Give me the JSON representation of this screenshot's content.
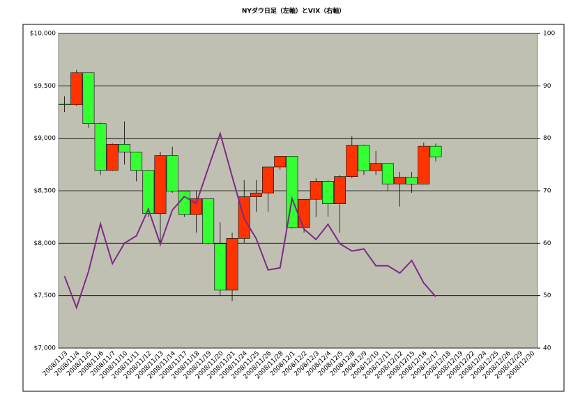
{
  "chart_data": {
    "type": "candlestick",
    "title": "NYダウ日足（左軸）とVIX（右軸）",
    "categories": [
      "2008/11/3",
      "2008/11/4",
      "2008/11/5",
      "2008/11/6",
      "2008/11/7",
      "2008/11/10",
      "2008/11/11",
      "2008/11/12",
      "2008/11/13",
      "2008/11/14",
      "2008/11/17",
      "2008/11/18",
      "2008/11/19",
      "2008/11/20",
      "2008/11/21",
      "2008/11/24",
      "2008/11/25",
      "2008/11/26",
      "2008/11/28",
      "2008/12/1",
      "2008/12/2",
      "2008/12/3",
      "2008/12/4",
      "2008/12/5",
      "2008/12/8",
      "2008/12/9",
      "2008/12/10",
      "2008/12/11",
      "2008/12/12",
      "2008/12/15",
      "2008/12/16",
      "2008/12/17",
      "2008/12/18",
      "2008/12/19",
      "2008/12/22",
      "2008/12/24",
      "2008/12/25",
      "2008/12/26",
      "2008/12/29",
      "2008/12/30"
    ],
    "open": [
      9325,
      9319,
      9625,
      9139,
      8695,
      8943,
      8870,
      8694,
      8283,
      8835,
      8497,
      8273,
      8424,
      7997,
      7552,
      8046,
      8443,
      8479,
      8726,
      8829,
      8149,
      8419,
      8591,
      8376,
      8635,
      8934,
      8691,
      8761,
      8565,
      8629,
      8564,
      8924,
      null,
      null,
      null,
      null,
      null,
      null,
      null,
      null
    ],
    "high": [
      9400,
      9653,
      9625,
      9150,
      8950,
      9160,
      8870,
      8700,
      8870,
      8920,
      8500,
      8500,
      8420,
      8200,
      8100,
      8600,
      8600,
      8730,
      8830,
      8830,
      8420,
      8620,
      8600,
      8650,
      9020,
      8940,
      8880,
      8760,
      8680,
      8680,
      8960,
      8950,
      null,
      null,
      null,
      null,
      null,
      null,
      null,
      null
    ],
    "low": [
      9250,
      9310,
      9100,
      8650,
      8690,
      8750,
      8590,
      8250,
      7970,
      8480,
      8250,
      8100,
      7990,
      7500,
      7450,
      8000,
      8300,
      8300,
      8700,
      8140,
      8100,
      8250,
      8250,
      8100,
      8620,
      8650,
      8650,
      8500,
      8350,
      8480,
      8560,
      8780,
      null,
      null,
      null,
      null,
      null,
      null,
      null,
      null
    ],
    "close": [
      9319,
      9625,
      9139,
      8695,
      8943,
      8870,
      8694,
      8283,
      8835,
      8497,
      8273,
      8424,
      7997,
      7552,
      8046,
      8443,
      8479,
      8726,
      8829,
      8149,
      8419,
      8591,
      8376,
      8635,
      8934,
      8691,
      8761,
      8565,
      8629,
      8564,
      8924,
      8824,
      null,
      null,
      null,
      null,
      null,
      null,
      null,
      null
    ],
    "up_color": "#ff3300",
    "down_color": "#33ff33",
    "line": {
      "color": "#7b2b86",
      "axis": "y2",
      "values": [
        53.7,
        47.7,
        54.6,
        63.7,
        56.1,
        60.0,
        61.4,
        66.5,
        59.8,
        66.3,
        68.9,
        67.6,
        74.3,
        80.9,
        72.7,
        64.7,
        60.9,
        54.9,
        55.3,
        68.5,
        62.7,
        60.7,
        63.6,
        59.9,
        58.5,
        58.9,
        55.7,
        55.7,
        54.3,
        56.7,
        52.4,
        49.8,
        null,
        null,
        null,
        null,
        null,
        null,
        null,
        null
      ]
    },
    "ylim": [
      7000,
      10000
    ],
    "yticks": [
      {
        "value": 7000,
        "label": "$7,000"
      },
      {
        "value": 7500,
        "label": "$7,500"
      },
      {
        "value": 8000,
        "label": "$8,000"
      },
      {
        "value": 8500,
        "label": "$8,500"
      },
      {
        "value": 9000,
        "label": "$9,000"
      },
      {
        "value": 9500,
        "label": "$9,500"
      },
      {
        "value": 10000,
        "label": "$10,000"
      }
    ],
    "y2lim": [
      40,
      100
    ],
    "y2ticks": [
      40,
      50,
      60,
      70,
      80,
      90,
      100
    ],
    "grid": true
  }
}
